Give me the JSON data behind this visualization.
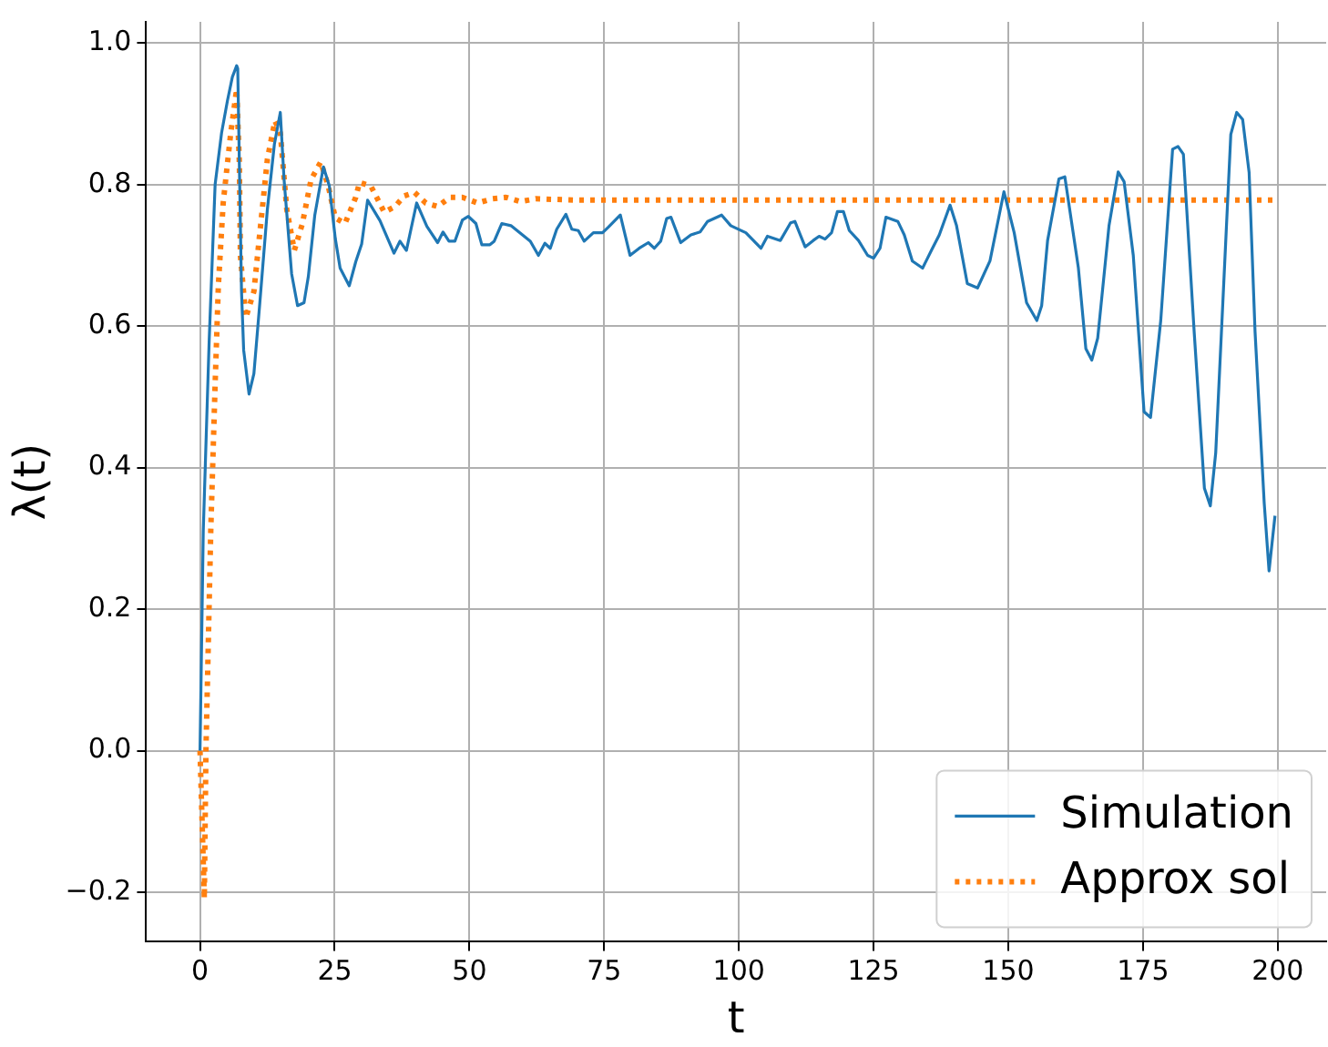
{
  "chart_data": {
    "type": "line",
    "xlabel": "t",
    "ylabel": "λ(t)",
    "xlim": [
      -10,
      209
    ],
    "ylim": [
      -0.27,
      1.03
    ],
    "xticks": [
      0,
      25,
      50,
      75,
      100,
      125,
      150,
      175,
      200
    ],
    "yticks": [
      {
        "value": -0.2,
        "label": "−0.2"
      },
      {
        "value": 0,
        "label": "0.0"
      },
      {
        "value": 0.2,
        "label": "0.2"
      },
      {
        "value": 0.4,
        "label": "0.4"
      },
      {
        "value": 0.6,
        "label": "0.6"
      },
      {
        "value": 0.8,
        "label": "0.8"
      },
      {
        "value": 1.0,
        "label": "1.0"
      }
    ],
    "grid": true,
    "legend": "bottom right",
    "series": [
      {
        "name": "Simulation",
        "color": "#1f77b4",
        "line_style": "solid",
        "x": [
          0,
          0.6,
          1.7,
          2.8,
          4,
          5.1,
          6,
          6.8,
          7,
          7.7,
          8.1,
          9.1,
          10,
          11.1,
          12.5,
          13.8,
          14.9,
          15.6,
          17,
          18.1,
          19.3,
          20.1,
          21.3,
          22.9,
          24,
          25.1,
          26,
          27.7,
          28.9,
          30,
          31.1,
          33.4,
          36,
          37.1,
          38.3,
          40.2,
          42.1,
          44.1,
          45.1,
          46.2,
          47.3,
          48.7,
          49.8,
          51.2,
          52.3,
          53.8,
          54.6,
          56,
          57.7,
          60,
          61.3,
          62.8,
          64,
          65,
          66.2,
          67.9,
          69,
          70.2,
          71.3,
          73,
          74.7,
          75.8,
          78,
          79.8,
          81.5,
          83.2,
          84.3,
          85.5,
          86.6,
          87.4,
          89.2,
          91.1,
          92.8,
          94.2,
          96.8,
          98.5,
          101.3,
          104.1,
          105.3,
          107.7,
          109.6,
          110.4,
          112.3,
          113.8,
          114.9,
          116,
          117.2,
          118.3,
          119.4,
          120.5,
          122.2,
          123.9,
          125,
          126.2,
          127.3,
          129.5,
          130.7,
          132.2,
          134.1,
          135.8,
          137.2,
          139.2,
          140.4,
          142.4,
          144.3,
          146.6,
          149.2,
          151.1,
          153.4,
          155.3,
          156.2,
          157.3,
          159.4,
          160.5,
          163,
          164.4,
          165.5,
          166.6,
          168.7,
          170.4,
          171.5,
          173.2,
          175.2,
          176.4,
          178.3,
          180.5,
          181.5,
          182.5,
          184.5,
          186.4,
          187.5,
          188.5,
          191.3,
          192.4,
          193.5,
          194.7,
          195.8,
          197.5,
          198.4,
          199.5
        ],
        "values": [
          0,
          0.31,
          0.58,
          0.8,
          0.873,
          0.919,
          0.952,
          0.968,
          0.964,
          0.649,
          0.566,
          0.504,
          0.533,
          0.633,
          0.765,
          0.857,
          0.902,
          0.807,
          0.674,
          0.629,
          0.633,
          0.67,
          0.757,
          0.825,
          0.798,
          0.724,
          0.682,
          0.657,
          0.691,
          0.716,
          0.778,
          0.749,
          0.703,
          0.72,
          0.707,
          0.774,
          0.741,
          0.718,
          0.733,
          0.72,
          0.72,
          0.75,
          0.755,
          0.745,
          0.715,
          0.715,
          0.72,
          0.745,
          0.742,
          0.728,
          0.72,
          0.7,
          0.717,
          0.71,
          0.737,
          0.758,
          0.737,
          0.735,
          0.72,
          0.732,
          0.732,
          0.74,
          0.757,
          0.7,
          0.71,
          0.718,
          0.71,
          0.72,
          0.752,
          0.754,
          0.718,
          0.729,
          0.733,
          0.748,
          0.757,
          0.742,
          0.732,
          0.71,
          0.727,
          0.721,
          0.746,
          0.748,
          0.712,
          0.721,
          0.727,
          0.723,
          0.732,
          0.762,
          0.762,
          0.735,
          0.721,
          0.7,
          0.696,
          0.71,
          0.754,
          0.748,
          0.729,
          0.692,
          0.682,
          0.708,
          0.729,
          0.771,
          0.742,
          0.66,
          0.654,
          0.692,
          0.79,
          0.732,
          0.633,
          0.608,
          0.629,
          0.721,
          0.808,
          0.811,
          0.683,
          0.568,
          0.552,
          0.583,
          0.742,
          0.818,
          0.804,
          0.7,
          0.479,
          0.471,
          0.608,
          0.85,
          0.854,
          0.843,
          0.592,
          0.371,
          0.346,
          0.421,
          0.871,
          0.902,
          0.892,
          0.817,
          0.592,
          0.35,
          0.254,
          0.332
        ]
      },
      {
        "name": "Approx sol",
        "color": "#ff7f0e",
        "line_style": "dotted",
        "x": [
          0,
          0.8,
          1.1,
          2,
          2.8,
          3.4,
          4.3,
          5.7,
          6.8,
          7.3,
          7.5,
          8.5,
          10,
          11.1,
          12.5,
          13.9,
          14.9,
          16.1,
          17.5,
          19,
          20.6,
          22.4,
          23.8,
          25.1,
          26.9,
          28.9,
          29.6,
          31.7,
          34.2,
          36.2,
          37.9,
          39.8,
          41.9,
          44.1,
          46.4,
          48.7,
          51.5,
          54.3,
          56.8,
          59.4,
          62.3,
          70,
          199.2
        ],
        "values": [
          0,
          -0.209,
          0,
          0.313,
          0.517,
          0.657,
          0.774,
          0.873,
          0.935,
          0.831,
          0.699,
          0.612,
          0.649,
          0.732,
          0.836,
          0.89,
          0.873,
          0.765,
          0.707,
          0.745,
          0.807,
          0.832,
          0.798,
          0.753,
          0.745,
          0.782,
          0.803,
          0.798,
          0.761,
          0.769,
          0.784,
          0.789,
          0.774,
          0.769,
          0.782,
          0.782,
          0.774,
          0.78,
          0.782,
          0.776,
          0.78,
          0.778,
          0.778
        ]
      }
    ]
  }
}
